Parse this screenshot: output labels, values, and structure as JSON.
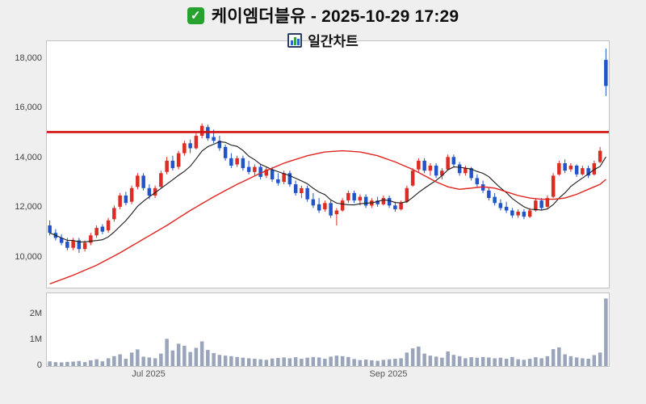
{
  "header": {
    "title": "케이엠더블유 - 2025-10-29 17:29",
    "subtitle": "일간차트"
  },
  "colors": {
    "up": "#dd2c23",
    "down": "#2054c8",
    "resistance": "#d01010",
    "ma_fast": "#1c1c1c",
    "ma_slow": "#e02420",
    "volume_bar": "#9aa5bb",
    "plot_bg": "#ffffff",
    "page_bg": "#efefef",
    "border": "#c2c2c2"
  },
  "chart_data": {
    "type": "candlestick_with_volume",
    "title": "케이엠더블유 daily candlestick chart with volume",
    "resistance_line": 15050,
    "ma_fast_period": 8,
    "price_axis": {
      "min": 8800,
      "max": 18700,
      "ticks": [
        {
          "value": 18000,
          "label": "18,000"
        },
        {
          "value": 16000,
          "label": "16,000"
        },
        {
          "value": 14000,
          "label": "14,000"
        },
        {
          "value": 12000,
          "label": "12,000"
        },
        {
          "value": 10000,
          "label": "10,000"
        }
      ]
    },
    "volume_axis": {
      "max": 2800000,
      "ticks": [
        {
          "value": 2000000,
          "label": "2M"
        },
        {
          "value": 1000000,
          "label": "1M"
        },
        {
          "value": 0,
          "label": "0"
        }
      ]
    },
    "x_ticks": [
      {
        "index": 17,
        "label": "Jul 2025"
      },
      {
        "index": 58,
        "label": "Sep 2025"
      }
    ],
    "candles": [
      [
        11300,
        11500,
        10900,
        11000,
        180000
      ],
      [
        11000,
        11150,
        10700,
        10800,
        150000
      ],
      [
        10800,
        10950,
        10500,
        10600,
        140000
      ],
      [
        10650,
        10800,
        10300,
        10400,
        160000
      ],
      [
        10400,
        10800,
        10300,
        10700,
        170000
      ],
      [
        10700,
        10800,
        10200,
        10350,
        190000
      ],
      [
        10350,
        10700,
        10250,
        10600,
        150000
      ],
      [
        10600,
        11000,
        10500,
        10900,
        220000
      ],
      [
        10900,
        11300,
        10800,
        11200,
        260000
      ],
      [
        11250,
        11350,
        10950,
        11050,
        180000
      ],
      [
        11100,
        11600,
        11000,
        11500,
        300000
      ],
      [
        11550,
        12100,
        11450,
        12000,
        380000
      ],
      [
        12050,
        12600,
        11950,
        12500,
        450000
      ],
      [
        12500,
        12650,
        12100,
        12200,
        280000
      ],
      [
        12250,
        12900,
        12150,
        12800,
        520000
      ],
      [
        12850,
        13400,
        12750,
        13300,
        640000
      ],
      [
        13300,
        13400,
        12700,
        12800,
        360000
      ],
      [
        12800,
        12950,
        12350,
        12500,
        330000
      ],
      [
        12500,
        12900,
        12400,
        12800,
        300000
      ],
      [
        12850,
        13500,
        12800,
        13400,
        480000
      ],
      [
        13450,
        14050,
        13350,
        13900,
        1050000
      ],
      [
        13900,
        14100,
        13500,
        13600,
        600000
      ],
      [
        13650,
        14300,
        13550,
        14200,
        860000
      ],
      [
        14200,
        14700,
        14100,
        14600,
        780000
      ],
      [
        14600,
        14750,
        14200,
        14400,
        540000
      ],
      [
        14400,
        15000,
        14350,
        14900,
        700000
      ],
      [
        14900,
        15400,
        14800,
        15300,
        950000
      ],
      [
        15250,
        15350,
        14700,
        14800,
        620000
      ],
      [
        14850,
        15150,
        14600,
        14700,
        500000
      ],
      [
        14700,
        14900,
        14300,
        14400,
        430000
      ],
      [
        14450,
        14550,
        13900,
        14000,
        400000
      ],
      [
        14000,
        14200,
        13600,
        13700,
        380000
      ],
      [
        13750,
        14100,
        13650,
        14000,
        350000
      ],
      [
        14000,
        14100,
        13500,
        13600,
        320000
      ],
      [
        13650,
        13900,
        13350,
        13450,
        300000
      ],
      [
        13450,
        13750,
        13300,
        13650,
        280000
      ],
      [
        13650,
        13750,
        13150,
        13250,
        260000
      ],
      [
        13300,
        13650,
        13200,
        13550,
        240000
      ],
      [
        13550,
        13650,
        13050,
        13150,
        290000
      ],
      [
        13150,
        13400,
        12900,
        13000,
        310000
      ],
      [
        13050,
        13500,
        12950,
        13400,
        330000
      ],
      [
        13400,
        13500,
        12850,
        12950,
        300000
      ],
      [
        12950,
        13100,
        12500,
        12600,
        340000
      ],
      [
        12600,
        12900,
        12400,
        12800,
        280000
      ],
      [
        12800,
        12900,
        12250,
        12350,
        320000
      ],
      [
        12350,
        12600,
        12000,
        12100,
        350000
      ],
      [
        12150,
        12400,
        11800,
        11900,
        330000
      ],
      [
        11950,
        12300,
        11850,
        12200,
        280000
      ],
      [
        12200,
        12300,
        11600,
        11700,
        360000
      ],
      [
        11750,
        12000,
        11300,
        11900,
        400000
      ],
      [
        11900,
        12400,
        11850,
        12300,
        380000
      ],
      [
        12300,
        12700,
        12200,
        12600,
        350000
      ],
      [
        12600,
        12700,
        12200,
        12300,
        270000
      ],
      [
        12300,
        12550,
        12100,
        12450,
        230000
      ],
      [
        12450,
        12550,
        12000,
        12100,
        250000
      ],
      [
        12100,
        12400,
        12000,
        12300,
        220000
      ],
      [
        12300,
        12450,
        12050,
        12150,
        200000
      ],
      [
        12150,
        12500,
        12100,
        12400,
        240000
      ],
      [
        12400,
        12500,
        12000,
        12100,
        260000
      ],
      [
        12100,
        12250,
        11850,
        11950,
        280000
      ],
      [
        11950,
        12300,
        11900,
        12200,
        300000
      ],
      [
        12250,
        12900,
        12200,
        12800,
        520000
      ],
      [
        12900,
        13600,
        12850,
        13500,
        680000
      ],
      [
        13550,
        14000,
        13450,
        13900,
        750000
      ],
      [
        13900,
        14000,
        13400,
        13500,
        480000
      ],
      [
        13500,
        13800,
        13300,
        13700,
        400000
      ],
      [
        13700,
        13800,
        13200,
        13300,
        360000
      ],
      [
        13300,
        13600,
        13150,
        13500,
        320000
      ],
      [
        13550,
        14150,
        13500,
        14050,
        560000
      ],
      [
        14050,
        14150,
        13650,
        13750,
        430000
      ],
      [
        13750,
        13850,
        13300,
        13400,
        380000
      ],
      [
        13400,
        13700,
        13300,
        13600,
        300000
      ],
      [
        13600,
        13650,
        13100,
        13200,
        340000
      ],
      [
        13200,
        13350,
        12850,
        12950,
        320000
      ],
      [
        12950,
        13100,
        12600,
        12700,
        350000
      ],
      [
        12700,
        12800,
        12300,
        12400,
        330000
      ],
      [
        12450,
        12600,
        12100,
        12200,
        300000
      ],
      [
        12200,
        12350,
        11900,
        12000,
        320000
      ],
      [
        12050,
        12250,
        11800,
        11900,
        280000
      ],
      [
        11900,
        12000,
        11600,
        11700,
        350000
      ],
      [
        11700,
        11950,
        11600,
        11850,
        260000
      ],
      [
        11850,
        11950,
        11550,
        11650,
        240000
      ],
      [
        11650,
        12000,
        11600,
        11900,
        280000
      ],
      [
        11900,
        12400,
        11850,
        12300,
        340000
      ],
      [
        12300,
        12400,
        11900,
        12000,
        300000
      ],
      [
        12050,
        12500,
        12000,
        12400,
        380000
      ],
      [
        12450,
        13400,
        12400,
        13300,
        650000
      ],
      [
        13350,
        13900,
        13300,
        13800,
        720000
      ],
      [
        13800,
        13950,
        13400,
        13500,
        450000
      ],
      [
        13550,
        13800,
        13450,
        13700,
        380000
      ],
      [
        13700,
        13750,
        13250,
        13350,
        330000
      ],
      [
        13350,
        13700,
        13300,
        13600,
        300000
      ],
      [
        13600,
        13700,
        13200,
        13300,
        280000
      ],
      [
        13350,
        13900,
        13300,
        13800,
        420000
      ],
      [
        13850,
        14450,
        13800,
        14300,
        520000
      ],
      [
        17950,
        18400,
        16500,
        16900,
        2600000
      ]
    ],
    "ma_slow_points": [
      [
        0,
        8950
      ],
      [
        4,
        9300
      ],
      [
        8,
        9700
      ],
      [
        12,
        10200
      ],
      [
        16,
        10750
      ],
      [
        20,
        11300
      ],
      [
        24,
        11900
      ],
      [
        28,
        12450
      ],
      [
        32,
        12950
      ],
      [
        36,
        13400
      ],
      [
        40,
        13800
      ],
      [
        44,
        14100
      ],
      [
        47,
        14250
      ],
      [
        50,
        14300
      ],
      [
        53,
        14250
      ],
      [
        56,
        14100
      ],
      [
        59,
        13850
      ],
      [
        62,
        13550
      ],
      [
        64,
        13300
      ],
      [
        66,
        13050
      ],
      [
        68,
        12850
      ],
      [
        70,
        12750
      ],
      [
        72,
        12800
      ],
      [
        74,
        12850
      ],
      [
        76,
        12800
      ],
      [
        78,
        12650
      ],
      [
        80,
        12500
      ],
      [
        82,
        12400
      ],
      [
        84,
        12350
      ],
      [
        86,
        12350
      ],
      [
        88,
        12400
      ],
      [
        90,
        12550
      ],
      [
        92,
        12750
      ],
      [
        94,
        12950
      ],
      [
        95,
        13150
      ]
    ]
  }
}
